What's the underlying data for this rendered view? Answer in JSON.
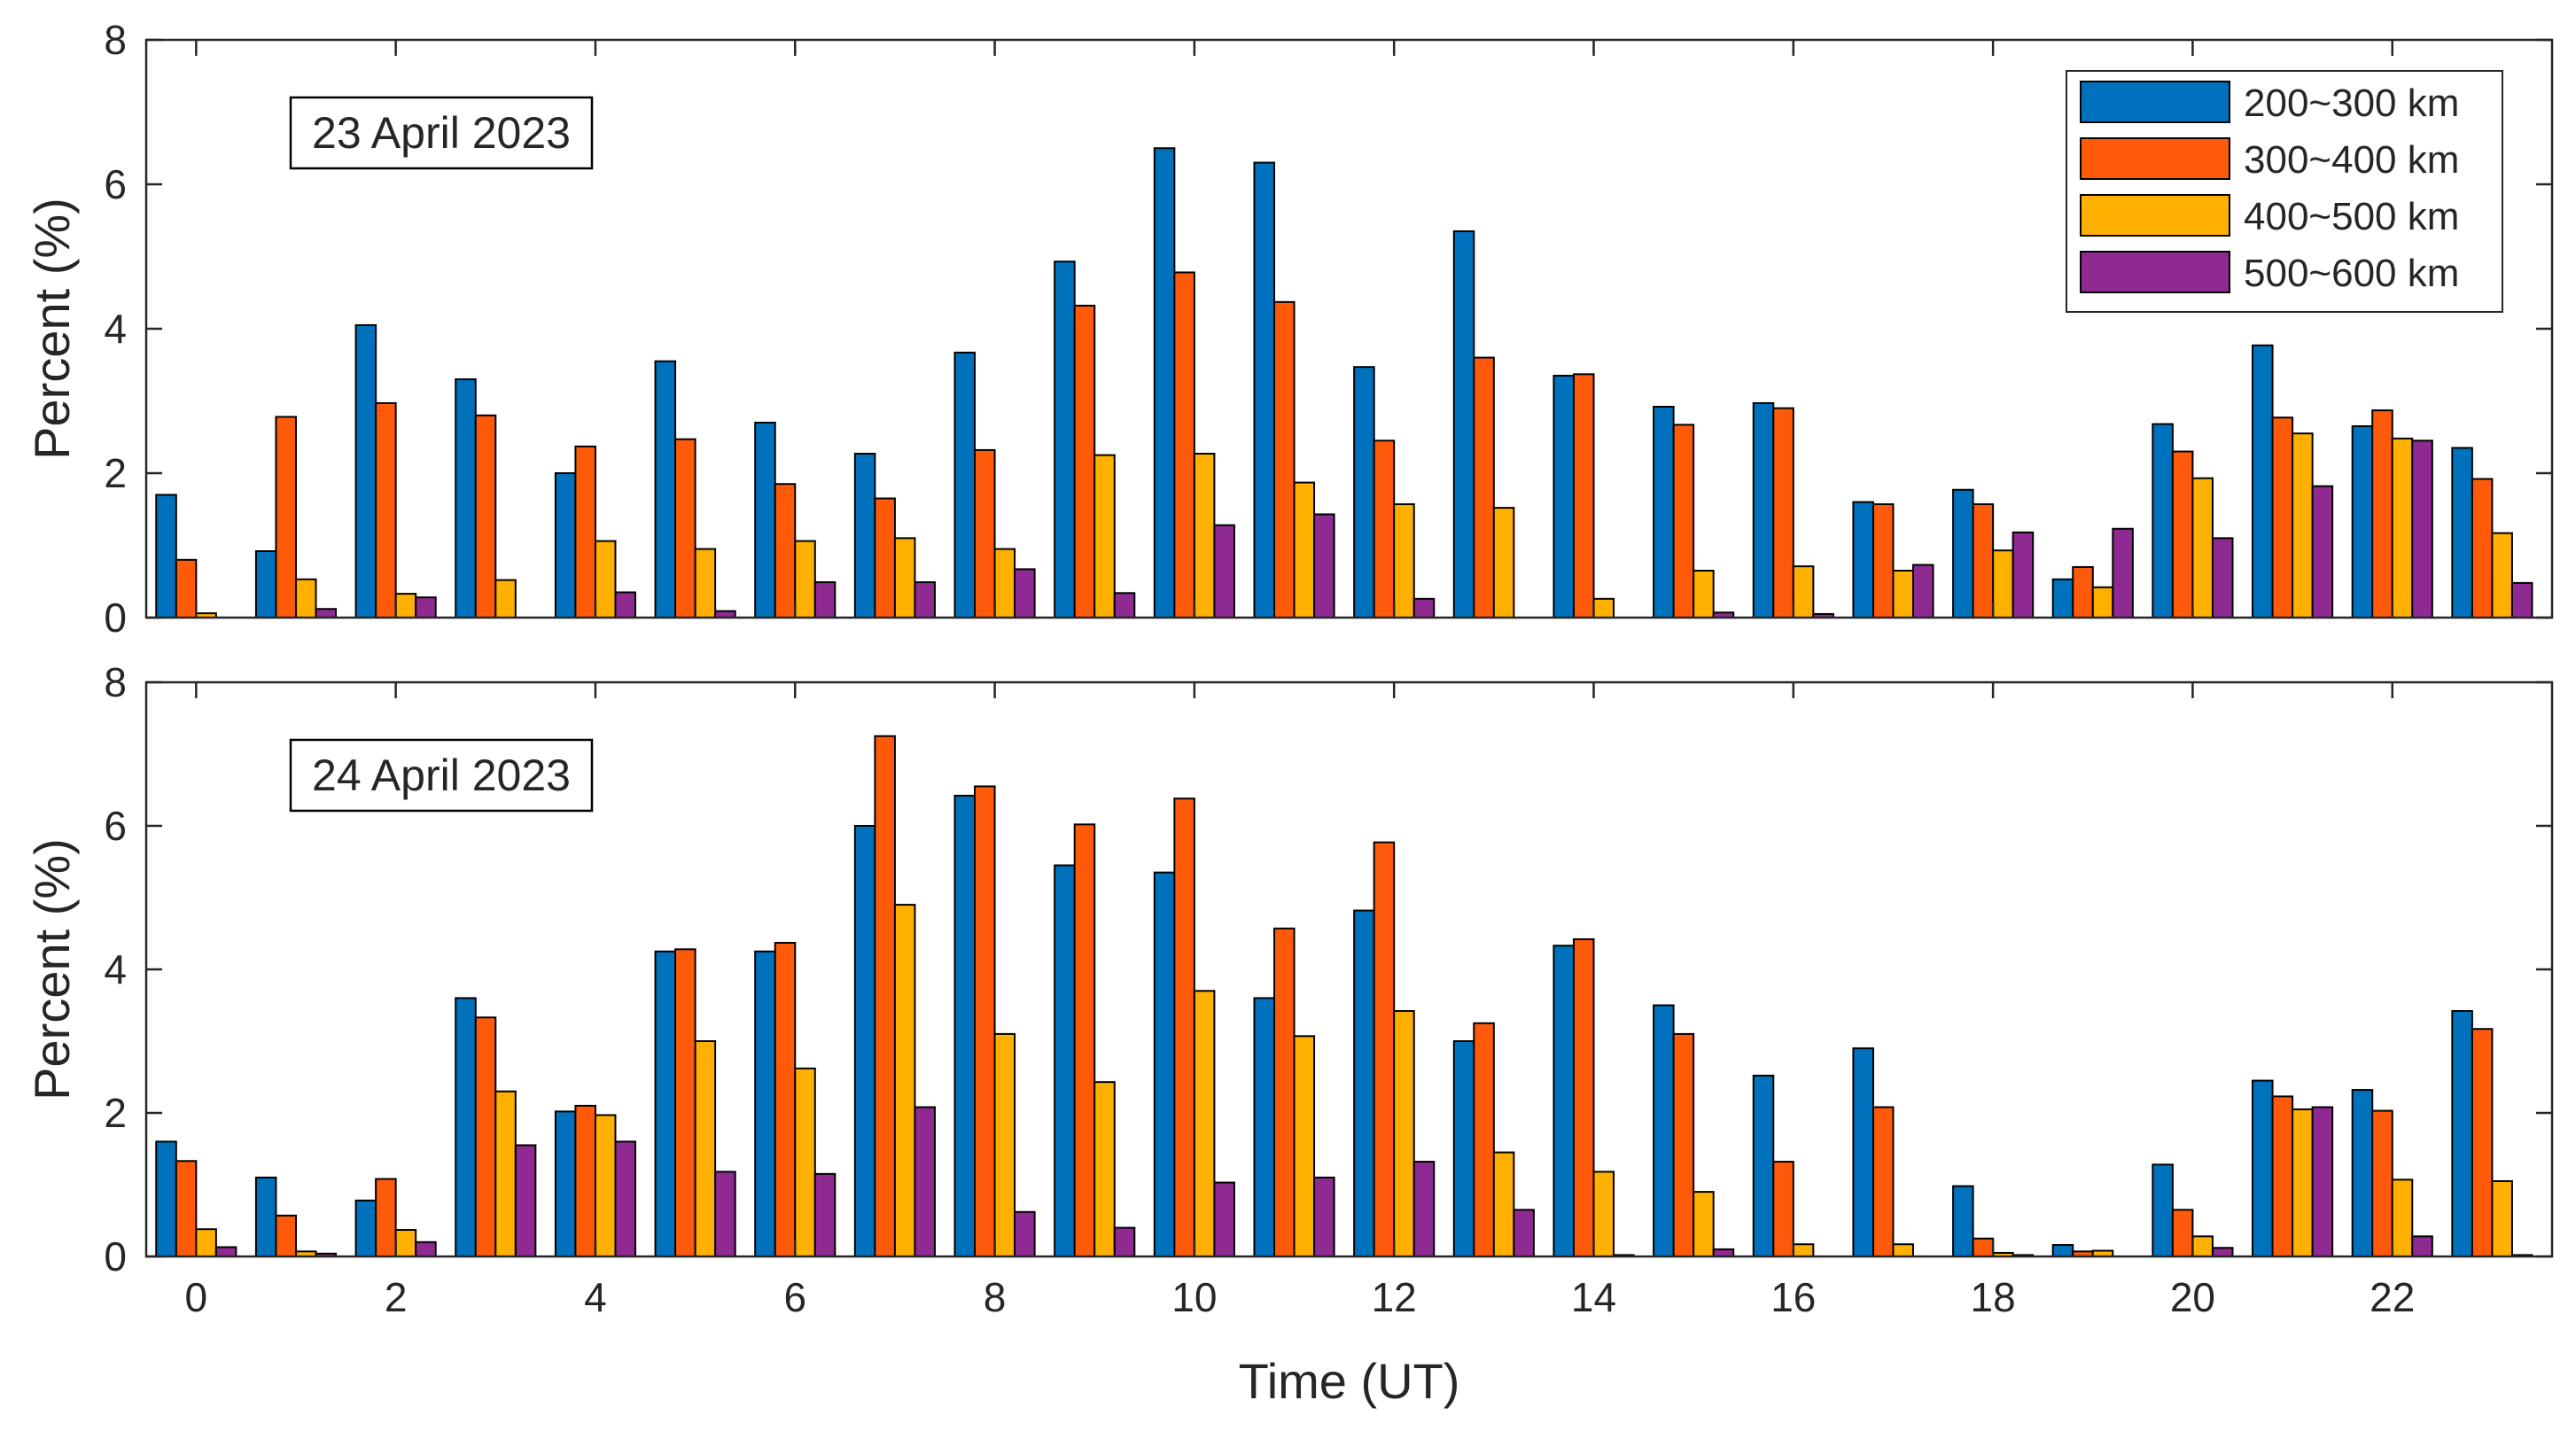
{
  "chart_data": [
    {
      "type": "bar",
      "title": "23 April 2023",
      "xlabel": "",
      "ylabel": "Percent (%)",
      "ylim": [
        0,
        8
      ],
      "yticks": [
        "0",
        "2",
        "4",
        "6",
        "8"
      ],
      "xticks": [
        "0",
        "2",
        "4",
        "6",
        "8",
        "10",
        "12",
        "14",
        "16",
        "18",
        "20",
        "22"
      ],
      "legend_position": "top-right",
      "categories": [
        0,
        1,
        2,
        3,
        4,
        5,
        6,
        7,
        8,
        9,
        10,
        11,
        12,
        13,
        14,
        15,
        16,
        17,
        18,
        19,
        20,
        21,
        22,
        23
      ],
      "series": [
        {
          "name": "200~300 km",
          "color": "#0072BD",
          "values": [
            1.7,
            0.92,
            4.05,
            3.3,
            2.0,
            3.55,
            2.7,
            2.27,
            3.67,
            4.93,
            6.5,
            6.3,
            3.47,
            5.35,
            3.35,
            2.92,
            2.97,
            1.6,
            1.77,
            0.53,
            2.68,
            3.77,
            2.65,
            2.35
          ]
        },
        {
          "name": "300~400 km",
          "color": "#FF5A0A",
          "values": [
            0.8,
            2.78,
            2.97,
            2.8,
            2.37,
            2.47,
            1.85,
            1.65,
            2.32,
            4.32,
            4.78,
            4.37,
            2.45,
            3.6,
            3.37,
            2.67,
            2.9,
            1.57,
            1.57,
            0.7,
            2.3,
            2.77,
            2.87,
            1.92
          ]
        },
        {
          "name": "400~500 km",
          "color": "#FFB000",
          "values": [
            0.06,
            0.53,
            0.33,
            0.52,
            1.06,
            0.95,
            1.06,
            1.1,
            0.95,
            2.25,
            2.27,
            1.87,
            1.57,
            1.52,
            0.26,
            0.65,
            0.71,
            0.65,
            0.93,
            0.42,
            1.93,
            2.55,
            2.48,
            1.17
          ]
        },
        {
          "name": "500~600 km",
          "color": "#8E2A91",
          "values": [
            0,
            0.12,
            0.28,
            0,
            0.35,
            0.09,
            0.49,
            0.49,
            0.67,
            0.34,
            1.28,
            1.43,
            0.26,
            0,
            0,
            0.07,
            0.05,
            0.73,
            1.18,
            1.23,
            1.1,
            1.82,
            2.45,
            0.48
          ]
        }
      ]
    },
    {
      "type": "bar",
      "title": "24 April 2023",
      "xlabel": "Time (UT)",
      "ylabel": "Percent (%)",
      "ylim": [
        0,
        8
      ],
      "yticks": [
        "0",
        "2",
        "4",
        "6",
        "8"
      ],
      "xticks": [
        "0",
        "2",
        "4",
        "6",
        "8",
        "10",
        "12",
        "14",
        "16",
        "18",
        "20",
        "22"
      ],
      "categories": [
        0,
        1,
        2,
        3,
        4,
        5,
        6,
        7,
        8,
        9,
        10,
        11,
        12,
        13,
        14,
        15,
        16,
        17,
        18,
        19,
        20,
        21,
        22,
        23
      ],
      "series": [
        {
          "name": "200~300 km",
          "color": "#0072BD",
          "values": [
            1.6,
            1.1,
            0.78,
            3.6,
            2.02,
            4.25,
            4.25,
            6.0,
            6.42,
            5.45,
            5.35,
            3.6,
            4.82,
            3.0,
            4.33,
            3.5,
            2.52,
            2.9,
            0.98,
            0.16,
            1.28,
            2.45,
            2.32,
            3.42
          ]
        },
        {
          "name": "300~400 km",
          "color": "#FF5A0A",
          "values": [
            1.33,
            0.57,
            1.08,
            3.33,
            2.1,
            4.28,
            4.37,
            7.25,
            6.55,
            6.02,
            6.38,
            4.57,
            5.77,
            3.25,
            4.42,
            3.1,
            1.32,
            2.08,
            0.25,
            0.07,
            0.65,
            2.23,
            2.03,
            3.17
          ]
        },
        {
          "name": "400~500 km",
          "color": "#FFB000",
          "values": [
            0.38,
            0.07,
            0.37,
            2.3,
            1.97,
            3.0,
            2.62,
            4.9,
            3.1,
            2.43,
            3.7,
            3.07,
            3.42,
            1.45,
            1.18,
            0.9,
            0.17,
            0.17,
            0.05,
            0.08,
            0.28,
            2.05,
            1.07,
            1.05
          ]
        },
        {
          "name": "500~600 km",
          "color": "#8E2A91",
          "values": [
            0.13,
            0.04,
            0.2,
            1.55,
            1.6,
            1.18,
            1.15,
            2.08,
            0.62,
            0.4,
            1.03,
            1.1,
            1.32,
            0.65,
            0.02,
            0.1,
            0,
            0,
            0.02,
            0,
            0.12,
            2.08,
            0.28,
            0.02
          ]
        }
      ]
    }
  ]
}
